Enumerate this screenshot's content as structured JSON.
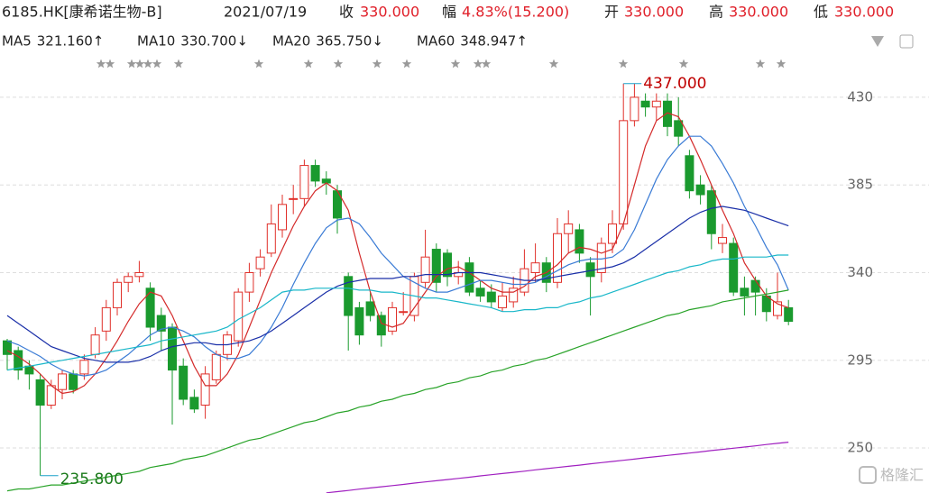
{
  "chart_data": {
    "type": "candlestick",
    "header": {
      "code": "6185.HK[康希诺生物-B]",
      "date": "2021/07/19",
      "items": [
        {
          "label": "收",
          "value": "330.000"
        },
        {
          "label": "幅",
          "value": "4.83%(15.200)"
        },
        {
          "label": "开",
          "value": "330.000"
        },
        {
          "label": "高",
          "value": "330.000"
        },
        {
          "label": "低",
          "value": "330.000"
        }
      ]
    },
    "up_color": "#e0302a",
    "down_color": "#1a9a2e",
    "categories": [
      null,
      null,
      null,
      null,
      null,
      null,
      null,
      null,
      null,
      null,
      null,
      null,
      null,
      null,
      null,
      null,
      null,
      null,
      null,
      null,
      null,
      null,
      null,
      null,
      null,
      null,
      null,
      null,
      null,
      null,
      null,
      null,
      null,
      null,
      null,
      null,
      null,
      null,
      null,
      null,
      null,
      null,
      null,
      null,
      null,
      null,
      null,
      null,
      null,
      null,
      null,
      null,
      null,
      null,
      null,
      null,
      null,
      null,
      null,
      null,
      null,
      null,
      null,
      null,
      null,
      null,
      null,
      null,
      null,
      null,
      null,
      null
    ],
    "open": [
      305,
      300,
      292,
      285,
      272,
      280,
      288,
      288,
      298,
      310,
      322,
      335,
      338,
      332,
      318,
      312,
      292,
      276,
      272,
      285,
      298,
      305,
      330,
      342,
      350,
      362,
      378,
      378,
      395,
      388,
      382,
      338,
      322,
      325,
      318,
      310,
      320,
      318,
      335,
      352,
      350,
      338,
      345,
      332,
      330,
      322,
      325,
      330,
      340,
      345,
      335,
      360,
      362,
      345,
      340,
      355,
      365,
      418,
      428,
      425,
      428,
      418,
      400,
      385,
      382,
      355,
      355,
      332,
      336,
      328,
      318,
      322
    ],
    "high": [
      306,
      302,
      295,
      288,
      285,
      290,
      290,
      298,
      312,
      326,
      337,
      340,
      346,
      335,
      322,
      314,
      296,
      280,
      292,
      300,
      310,
      332,
      345,
      352,
      375,
      380,
      385,
      398,
      398,
      392,
      385,
      340,
      325,
      330,
      320,
      325,
      330,
      340,
      362,
      355,
      352,
      346,
      348,
      336,
      334,
      335,
      338,
      352,
      355,
      348,
      368,
      372,
      365,
      348,
      358,
      372,
      437,
      437,
      432,
      432,
      432,
      430,
      403,
      390,
      385,
      365,
      358,
      338,
      338,
      332,
      340,
      326
    ],
    "low": [
      290,
      285,
      280,
      235.8,
      270,
      275,
      278,
      285,
      296,
      305,
      318,
      330,
      335,
      305,
      300,
      262,
      272,
      268,
      265,
      283,
      295,
      302,
      325,
      338,
      348,
      358,
      370,
      374,
      384,
      380,
      360,
      300,
      303,
      315,
      302,
      308,
      318,
      315,
      332,
      330,
      333,
      334,
      328,
      325,
      322,
      320,
      322,
      328,
      335,
      330,
      332,
      350,
      345,
      318,
      335,
      350,
      362,
      415,
      420,
      418,
      410,
      405,
      378,
      375,
      352,
      350,
      328,
      318,
      318,
      315,
      316,
      313
    ],
    "close": [
      298,
      290,
      288,
      272,
      282,
      288,
      280,
      295,
      308,
      322,
      335,
      338,
      340,
      312,
      310,
      290,
      275,
      270,
      288,
      298,
      308,
      330,
      340,
      348,
      365,
      375,
      378,
      395,
      387,
      386,
      368,
      318,
      308,
      318,
      308,
      322,
      320,
      338,
      348,
      335,
      338,
      340,
      330,
      328,
      325,
      328,
      332,
      342,
      345,
      335,
      360,
      365,
      350,
      338,
      355,
      365,
      418,
      430,
      425,
      428,
      415,
      410,
      382,
      380,
      360,
      358,
      330,
      328,
      330,
      320,
      325,
      315
    ],
    "series": [
      {
        "name": "MA5",
        "value_label": "321.160↑",
        "color": "#d42a2a",
        "values": [
          300,
          297,
          293,
          288,
          282,
          278,
          279,
          282,
          288,
          296,
          305,
          315,
          324,
          330,
          328,
          318,
          305,
          292,
          282,
          282,
          288,
          298,
          312,
          326,
          340,
          352,
          364,
          374,
          382,
          386,
          382,
          372,
          350,
          330,
          314,
          312,
          314,
          322,
          330,
          338,
          342,
          343,
          340,
          336,
          332,
          330,
          330,
          333,
          338,
          340,
          344,
          350,
          353,
          352,
          350,
          352,
          365,
          385,
          405,
          418,
          422,
          420,
          410,
          398,
          385,
          372,
          360,
          345,
          336,
          328,
          324,
          322
        ]
      },
      {
        "name": "MA10",
        "value_label": "330.700↓",
        "color": "#3a7bd5",
        "values": [
          305,
          303,
          300,
          297,
          293,
          290,
          288,
          287,
          288,
          290,
          294,
          298,
          303,
          308,
          311,
          312,
          310,
          307,
          302,
          298,
          296,
          296,
          298,
          304,
          312,
          322,
          334,
          345,
          355,
          363,
          367,
          368,
          365,
          358,
          350,
          344,
          338,
          335,
          332,
          330,
          330,
          332,
          334,
          336,
          336,
          335,
          334,
          334,
          335,
          338,
          341,
          344,
          346,
          347,
          347,
          348,
          352,
          362,
          375,
          388,
          398,
          405,
          410,
          410,
          405,
          396,
          386,
          374,
          364,
          353,
          344,
          331
        ]
      },
      {
        "name": "MA20",
        "value_label": "365.750↓",
        "color": "#1a2fa8",
        "values": [
          318,
          314,
          310,
          306,
          302,
          300,
          298,
          296,
          295,
          294,
          294,
          294,
          295,
          297,
          300,
          302,
          303,
          304,
          304,
          303,
          303,
          304,
          305,
          307,
          310,
          314,
          318,
          322,
          326,
          330,
          333,
          335,
          336,
          337,
          337,
          337,
          338,
          338,
          339,
          339,
          339,
          340,
          340,
          340,
          339,
          338,
          337,
          336,
          336,
          337,
          338,
          339,
          340,
          341,
          342,
          343,
          345,
          348,
          352,
          356,
          360,
          364,
          368,
          371,
          373,
          374,
          373,
          372,
          370,
          368,
          366,
          364
        ]
      },
      {
        "name": "MA60",
        "value_label": "348.947↑",
        "color": "#19b7c9",
        "values": [
          290,
          291,
          292,
          293,
          294,
          295,
          296,
          297,
          298,
          299,
          300,
          301,
          302,
          303,
          305,
          306,
          307,
          308,
          309,
          310,
          312,
          316,
          319,
          322,
          326,
          330,
          331,
          331,
          332,
          332,
          332,
          332,
          331,
          331,
          330,
          330,
          329,
          328,
          327,
          327,
          326,
          325,
          324,
          323,
          322,
          320,
          320,
          321,
          321,
          322,
          322,
          324,
          325,
          327,
          328,
          330,
          332,
          334,
          336,
          338,
          340,
          341,
          343,
          344,
          346,
          347,
          347,
          348,
          348,
          348,
          349,
          349
        ]
      },
      {
        "color": "#29a329",
        "values": [
          228,
          229,
          229,
          230,
          231,
          231,
          232,
          233,
          234,
          235,
          236,
          237,
          238,
          240,
          241,
          242,
          244,
          245,
          246,
          248,
          250,
          252,
          254,
          255,
          257,
          259,
          261,
          263,
          264,
          266,
          268,
          269,
          271,
          272,
          274,
          275,
          277,
          278,
          280,
          281,
          283,
          284,
          286,
          287,
          289,
          290,
          292,
          293,
          295,
          296,
          298,
          300,
          302,
          304,
          306,
          308,
          310,
          312,
          314,
          316,
          318,
          319,
          321,
          322,
          323,
          325,
          326,
          327,
          328,
          329,
          330,
          331
        ]
      },
      {
        "color": "#a020c0",
        "values": [
          null,
          null,
          null,
          null,
          null,
          null,
          null,
          null,
          null,
          null,
          null,
          null,
          null,
          null,
          null,
          null,
          null,
          null,
          null,
          null,
          null,
          null,
          null,
          null,
          null,
          null,
          null,
          null,
          null,
          227,
          227.6,
          228.2,
          228.9,
          229.5,
          230.1,
          230.7,
          231.3,
          232,
          232.6,
          233.2,
          233.8,
          234.4,
          235,
          235.7,
          236.3,
          236.9,
          237.5,
          238.1,
          238.8,
          239.4,
          240,
          240.6,
          241.2,
          241.9,
          242.5,
          243.1,
          243.7,
          244.3,
          245,
          245.6,
          246.2,
          246.8,
          247.4,
          248,
          248.7,
          249.3,
          249.9,
          250.5,
          251.1,
          251.8,
          252.4,
          253
        ]
      }
    ],
    "annotations": [
      {
        "text": "437.000",
        "value": 437,
        "color": "#c00000"
      },
      {
        "text": "235.800",
        "value": 235.8,
        "color": "#1a7a1a"
      }
    ],
    "ylim": [
      226.9,
      440.6
    ],
    "yticks": [
      250,
      295,
      340,
      385,
      430
    ],
    "grid": true,
    "watermark": "格隆汇"
  }
}
